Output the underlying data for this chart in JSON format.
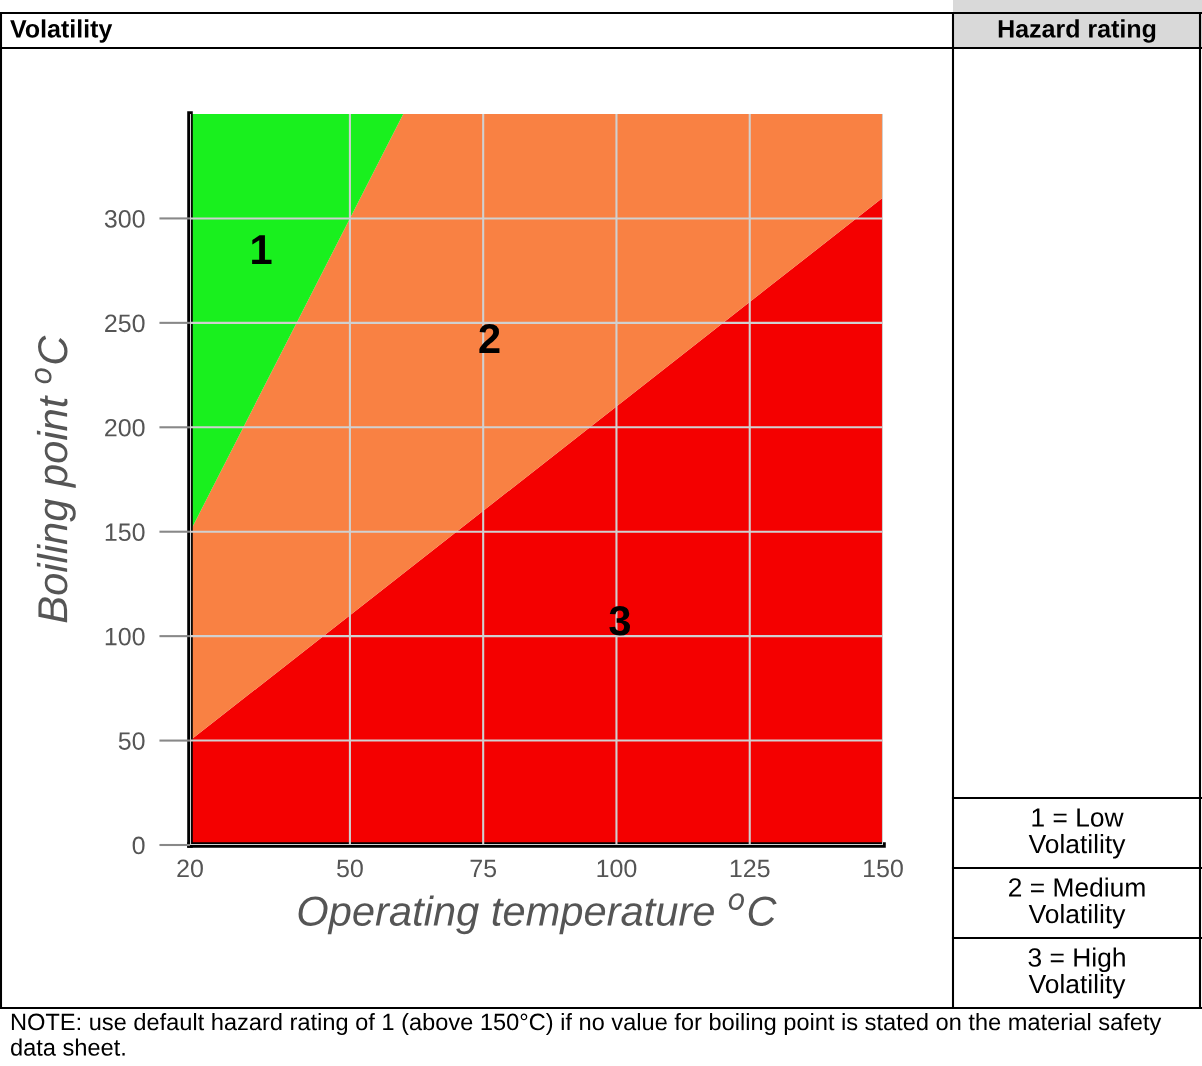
{
  "chart_data": {
    "type": "area",
    "title": "Volatility",
    "legend_title": "Hazard rating",
    "xlabel": "Operating temperature $^{o}$C",
    "ylabel": "Boiling point $^{o}$C",
    "xlim": [
      20,
      150
    ],
    "ylim": [
      0,
      350
    ],
    "xticks": [
      20,
      50,
      75,
      100,
      125,
      150
    ],
    "yticks": [
      0,
      50,
      100,
      150,
      200,
      250,
      300
    ],
    "grid": true,
    "stacked": true,
    "x": [
      20,
      60,
      150
    ],
    "series": [
      {
        "name": "3",
        "color": "#f40000",
        "values": [
          50,
          130,
          310
        ]
      },
      {
        "name": "2",
        "color": "#f98143",
        "values": [
          100,
          220,
          40
        ]
      },
      {
        "name": "1",
        "color": "#19f01e",
        "values": [
          200,
          0,
          0
        ]
      }
    ],
    "annotations": [
      "1 = Low\nVolatility",
      "2 = Medium\nVolatility",
      "3 = High\nVolatility",
      "NOTE: use default hazard rating of 1 (above 150°C) if no value for boiling point is stated on the material safety data sheet."
    ]
  }
}
